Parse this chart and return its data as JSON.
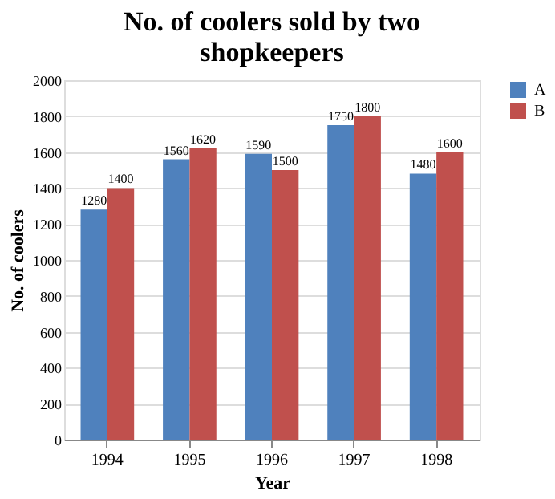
{
  "chart_data": {
    "type": "bar",
    "title": "No. of coolers sold by two shopkeepers",
    "xlabel": "Year",
    "ylabel": "No. of coolers",
    "categories": [
      "1994",
      "1995",
      "1996",
      "1997",
      "1998"
    ],
    "series": [
      {
        "name": "A",
        "color": "#4f81bd",
        "values": [
          1280,
          1560,
          1590,
          1750,
          1480
        ]
      },
      {
        "name": "B",
        "color": "#c0504d",
        "values": [
          1400,
          1620,
          1500,
          1800,
          1600
        ]
      }
    ],
    "ylim": [
      0,
      2000
    ],
    "yticks": [
      0,
      200,
      400,
      600,
      800,
      1000,
      1200,
      1400,
      1600,
      1800,
      2000
    ],
    "grid": "y",
    "legend": "right",
    "data_labels": true
  }
}
